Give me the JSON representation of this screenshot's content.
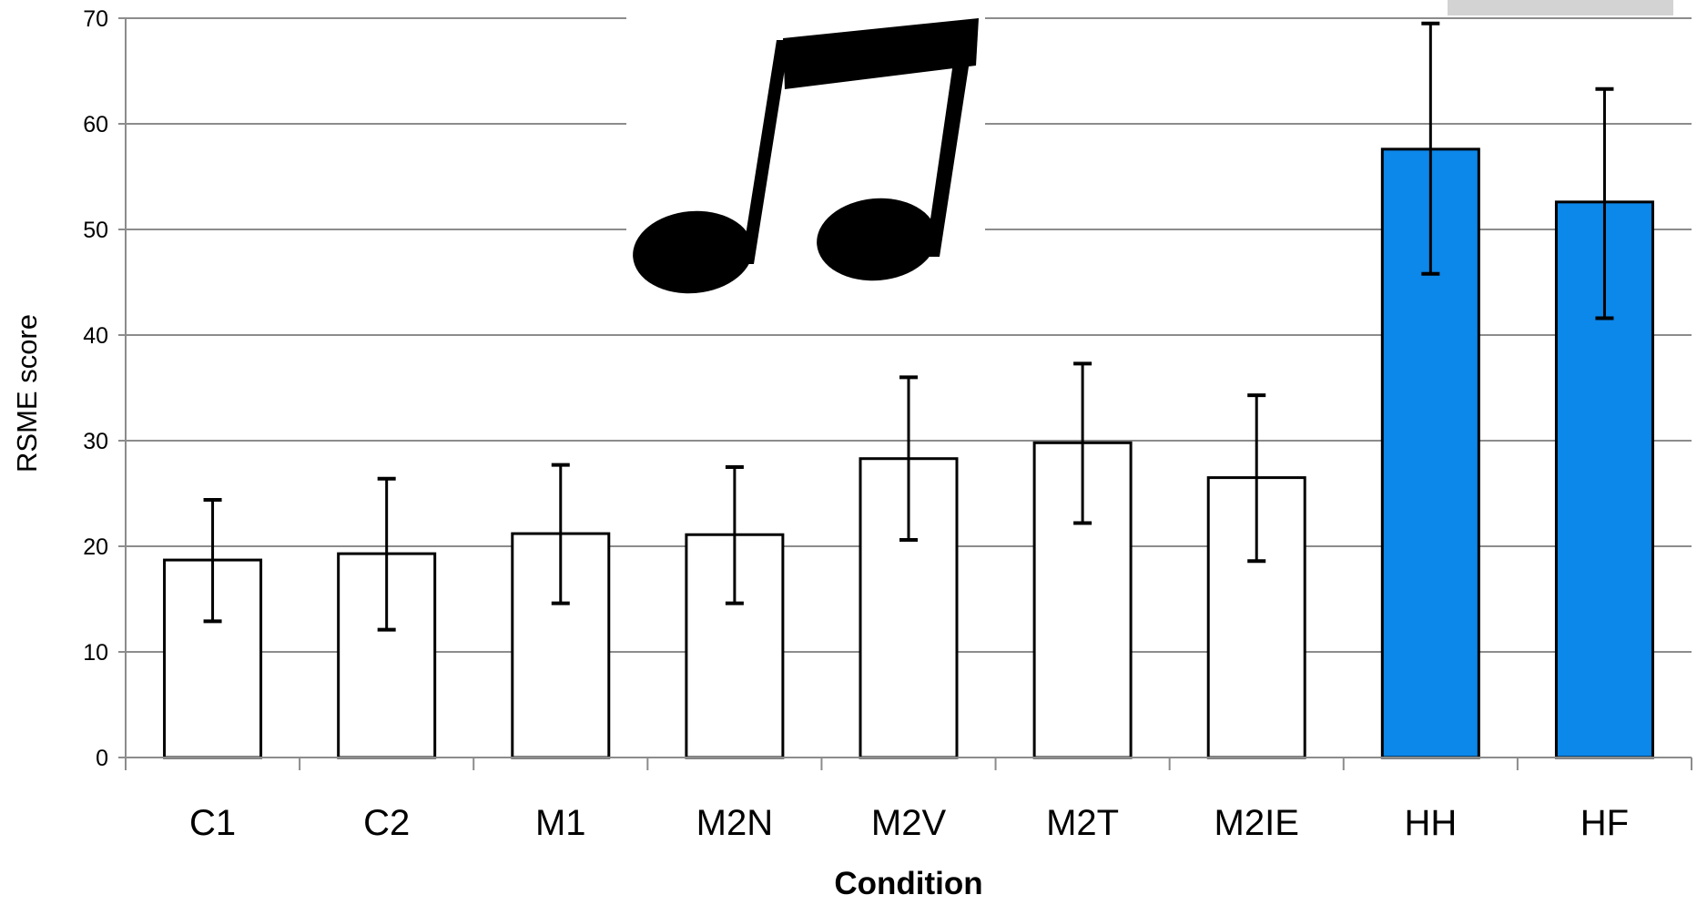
{
  "chart_data": {
    "type": "bar",
    "title": "",
    "xlabel": "Condition",
    "ylabel": "RSME score",
    "ylim": [
      0,
      70
    ],
    "yticks": [
      0,
      10,
      20,
      30,
      40,
      50,
      60,
      70
    ],
    "grid": true,
    "legend": "none",
    "categories": [
      "C1",
      "C2",
      "M1",
      "M2N",
      "M2V",
      "M2T",
      "M2IE",
      "HH",
      "HF"
    ],
    "values": [
      18.7,
      19.3,
      21.2,
      21.1,
      28.3,
      29.8,
      26.5,
      57.6,
      52.6
    ],
    "error_low": [
      12.9,
      12.1,
      14.6,
      14.6,
      20.6,
      22.2,
      18.6,
      45.8,
      41.6
    ],
    "error_high": [
      24.4,
      26.4,
      27.7,
      27.5,
      36.0,
      37.3,
      34.3,
      69.5,
      63.3
    ],
    "bar_colors": [
      "#ffffff",
      "#ffffff",
      "#ffffff",
      "#ffffff",
      "#ffffff",
      "#ffffff",
      "#ffffff",
      "#0c87ea",
      "#0c87ea"
    ],
    "bar_outline_color": "#000000",
    "decoration": "music-note-icon"
  }
}
